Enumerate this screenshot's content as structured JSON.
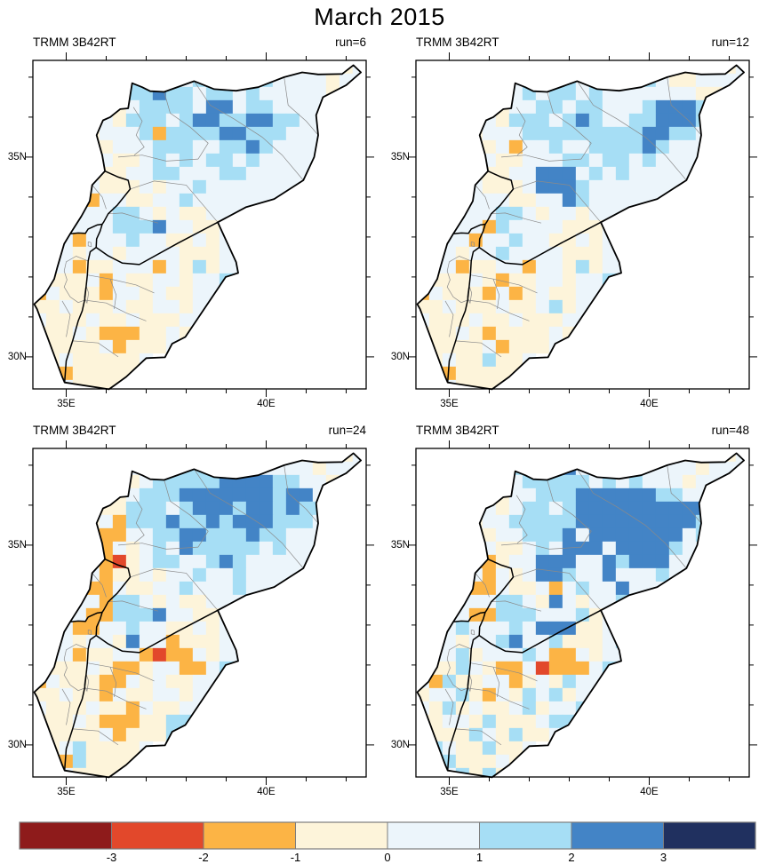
{
  "title": "March 2015",
  "chart_data": {
    "type": "heatmap",
    "title": "March 2015",
    "dataset_label": "TRMM 3B42RT",
    "description": "2x2 panel map figure of gridded precipitation anomaly categories over Syria, Lebanon, Israel and Jordan; color index 0-7 maps to bins < -3, -3..-2, -2..-1, -1..0, 0..1, 1..2, 2..3, > 3",
    "grid_origin": {
      "lon": 34.167,
      "lat": 37.42
    },
    "grid_cell_deg": 0.3333,
    "grid_cols": 25,
    "grid_rows": 25,
    "lon_range": [
      34.167,
      42.5
    ],
    "lat_range": [
      29.2,
      37.42
    ],
    "legend_position": "bottom",
    "axes": {
      "x_ticks": [
        {
          "lon": 35,
          "label": "35E",
          "major": true
        },
        {
          "lon": 36
        },
        {
          "lon": 37
        },
        {
          "lon": 38
        },
        {
          "lon": 39
        },
        {
          "lon": 40,
          "label": "40E",
          "major": true
        },
        {
          "lon": 41
        },
        {
          "lon": 42
        }
      ],
      "y_ticks": [
        {
          "lat": 30,
          "label": "30N",
          "major": true
        },
        {
          "lat": 31
        },
        {
          "lat": 32
        },
        {
          "lat": 33
        },
        {
          "lat": 34
        },
        {
          "lat": 35,
          "label": "35N",
          "major": true
        },
        {
          "lat": 36
        },
        {
          "lat": 37
        }
      ]
    },
    "colorbar": {
      "tick_labels": [
        "-3",
        "-2",
        "-1",
        "0",
        "1",
        "2",
        "3"
      ],
      "colors": [
        "#8e1b1b",
        "#e2482b",
        "#fcb445",
        "#fdf4da",
        "#ecf5fb",
        "#a6def5",
        "#4384c6",
        "#20305f"
      ]
    },
    "panels": [
      {
        "run": 6,
        "run_label": "run=6",
        "grid": [
          "......4454544544444434434",
          ".....44545645554454444344",
          "....44455655455454444434.",
          "....4434555546645544443..",
          "...44435554566556655444..",
          "...4344452555566555444...",
          "...3434445554455654444...",
          "...4243345454554544444...",
          "...433344554445544444....",
          "...44333434454444444.....",
          "...4244334454444444......",
          "...44455434334444........",
          ".444445556443344.........",
          ".442444544334344.........",
          ".443443444433344.........",
          ".442334442435344.........",
          "4333424334434455.........",
          "243332443433444..........",
          "33433343344344...........",
          "4333433433344............",
          "3334322233434............",
          "43333423334..............",
          "334333334................",
          "33233333.................",
          ".343333.................."
        ]
      },
      {
        "run": 12,
        "run_label": "run=12",
        "grid": [
          "......4444444544444333434",
          ".....44454454444454334444",
          "....44445455454444444334.",
          "....4434455455444566654..",
          "...44435554565445566655..",
          "...4344455555555566554...",
          "...3434244544555565444...",
          "...4343344455455454444...",
          "...433344666454544444....",
          "...44333466654444444.....",
          "...4444334465444444......",
          "...44455434434444........",
          ".444425444433344.........",
          ".444244544334344.........",
          ".443445444433344.........",
          ".442334424435344.........",
          "4333432334434455.........",
          "243332423433444..........",
          "33433343345344...........",
          "4333433433344............",
          "3334323333434............",
          "43333423334..............",
          "334335334................",
          "33233333.................",
          ".343333.................."
        ]
      },
      {
        "run": 24,
        "run_label": "run=24",
        "grid": [
          "......4444454544444334434",
          ".....43454455455544443444",
          "....33434555556666554434.",
          "....3334555666666656644..",
          "...43335554566656656554..",
          "...4342555655656665554...",
          "...3422445566555655444...",
          "...4224345465555545444...",
          "...432134554456544444....",
          "...44233434454454444.....",
          "...4224334454445444......",
          "...44255434334444........",
          ".444225556443344.........",
          ".442244544334344.........",
          ".443443644233344.........",
          ".442334421224344.........",
          "4333432234422455.........",
          "243332243433444..........",
          "33433243344344...........",
          "4333433243344............",
          "3334322233554............",
          "43333423335..............",
          "334533334................",
          "33253333.................",
          ".343333.................."
        ]
      },
      {
        "run": 48,
        "run_label": "run=48",
        "grid": [
          "......4454544544454334434",
          ".....44545564545444443444",
          "....44445555545454443444.",
          "....4434455566666655444..",
          "...444345545666666666644.",
          "...43445555566666666654..",
          "...34344555646666666454..",
          "...4343345466646666544...",
          "...422344666446566644....",
          "...44243466544644454.....",
          "...4224334245446444......",
          "...44455436434454........",
          ".444225554445345.........",
          ".445444546663344.........",
          ".443445644533345.........",
          ".445344454224344.........",
          "4335432241222455.........",
          "425334423435444..........",
          "34453243545344...........",
          "4353433453445............",
          "3344353334554............",
          "43335435334..............",
          "354335334................",
          "34533343.................",
          ".345353.................."
        ]
      }
    ]
  },
  "map_geometry": {
    "outline": [
      [
        35.92,
        35.92
      ],
      [
        35.76,
        35.55
      ],
      [
        35.9,
        35.05
      ],
      [
        35.97,
        34.65
      ],
      [
        35.65,
        34.3
      ],
      [
        35.59,
        33.9
      ],
      [
        35.38,
        33.52
      ],
      [
        35.1,
        33.08
      ],
      [
        34.95,
        32.83
      ],
      [
        34.78,
        32.25
      ],
      [
        34.7,
        31.95
      ],
      [
        34.48,
        31.58
      ],
      [
        34.2,
        31.32
      ],
      [
        34.27,
        31.2
      ],
      [
        34.9,
        29.5
      ],
      [
        34.96,
        29.36
      ],
      [
        36.07,
        29.19
      ],
      [
        36.5,
        29.5
      ],
      [
        37.0,
        29.97
      ],
      [
        37.47,
        29.99
      ],
      [
        37.65,
        30.33
      ],
      [
        37.98,
        30.5
      ],
      [
        38.99,
        32.0
      ],
      [
        39.3,
        32.1
      ],
      [
        39.25,
        32.37
      ],
      [
        38.79,
        33.37
      ],
      [
        39.5,
        33.75
      ],
      [
        40.2,
        33.95
      ],
      [
        40.93,
        34.42
      ],
      [
        41.2,
        35.0
      ],
      [
        41.3,
        35.55
      ],
      [
        41.25,
        36.05
      ],
      [
        41.42,
        36.5
      ],
      [
        42.0,
        36.8
      ],
      [
        42.37,
        37.12
      ],
      [
        42.18,
        37.3
      ],
      [
        41.9,
        37.08
      ],
      [
        41.3,
        37.07
      ],
      [
        40.9,
        37.12
      ],
      [
        40.45,
        37.0
      ],
      [
        39.8,
        36.75
      ],
      [
        39.25,
        36.66
      ],
      [
        38.7,
        36.7
      ],
      [
        38.2,
        36.9
      ],
      [
        37.45,
        36.63
      ],
      [
        37.1,
        36.65
      ],
      [
        36.9,
        36.75
      ],
      [
        36.65,
        36.85
      ],
      [
        36.55,
        36.22
      ],
      [
        36.35,
        36.2
      ],
      [
        36.1,
        36.0
      ],
      [
        35.92,
        35.92
      ]
    ],
    "internal_borders": [
      [
        [
          35.97,
          34.65
        ],
        [
          36.3,
          34.5
        ],
        [
          36.55,
          34.42
        ],
        [
          36.6,
          34.2
        ],
        [
          36.28,
          33.8
        ],
        [
          36.05,
          33.58
        ],
        [
          35.94,
          33.38
        ],
        [
          35.9,
          33.32
        ]
      ],
      [
        [
          35.1,
          33.08
        ],
        [
          35.3,
          33.1
        ],
        [
          35.48,
          33.09
        ],
        [
          35.55,
          33.2
        ],
        [
          35.77,
          33.3
        ],
        [
          35.9,
          33.32
        ]
      ],
      [
        [
          35.9,
          33.32
        ],
        [
          35.85,
          33.15
        ],
        [
          35.76,
          32.95
        ],
        [
          35.75,
          32.74
        ]
      ],
      [
        [
          35.75,
          32.74
        ],
        [
          36.05,
          32.53
        ],
        [
          36.4,
          32.35
        ],
        [
          36.83,
          32.31
        ],
        [
          37.8,
          32.85
        ],
        [
          38.79,
          33.37
        ]
      ],
      [
        [
          35.75,
          32.74
        ],
        [
          35.6,
          32.63
        ],
        [
          35.55,
          32.4
        ],
        [
          35.53,
          32.05
        ],
        [
          35.5,
          31.78
        ],
        [
          35.46,
          31.42
        ],
        [
          35.4,
          31.15
        ],
        [
          35.3,
          30.9
        ],
        [
          35.16,
          30.4
        ],
        [
          35.0,
          29.9
        ],
        [
          34.96,
          29.36
        ]
      ]
    ],
    "admin_lines": [
      [
        [
          35.55,
          32.4
        ],
        [
          35.25,
          32.52
        ],
        [
          35.0,
          32.38
        ],
        [
          34.95,
          32.15
        ],
        [
          35.02,
          31.93
        ],
        [
          34.95,
          31.75
        ],
        [
          35.1,
          31.5
        ],
        [
          35.3,
          31.36
        ],
        [
          35.46,
          31.42
        ]
      ],
      [
        [
          36.68,
          36.25
        ],
        [
          36.9,
          35.9
        ],
        [
          36.75,
          35.55
        ],
        [
          36.95,
          35.25
        ],
        [
          36.7,
          35.05
        ]
      ],
      [
        [
          37.45,
          36.63
        ],
        [
          37.6,
          36.1
        ],
        [
          38.1,
          35.75
        ],
        [
          38.55,
          35.35
        ],
        [
          38.3,
          34.95
        ]
      ],
      [
        [
          38.2,
          36.9
        ],
        [
          38.6,
          36.3
        ],
        [
          39.2,
          35.95
        ],
        [
          39.9,
          35.5
        ],
        [
          40.4,
          35.05
        ],
        [
          40.93,
          34.42
        ]
      ],
      [
        [
          40.45,
          37.0
        ],
        [
          40.55,
          36.3
        ],
        [
          41.0,
          35.9
        ],
        [
          41.3,
          35.55
        ]
      ],
      [
        [
          36.6,
          34.2
        ],
        [
          37.2,
          34.4
        ],
        [
          38.0,
          34.3
        ],
        [
          38.79,
          33.37
        ]
      ],
      [
        [
          36.3,
          35.0
        ],
        [
          36.9,
          35.05
        ],
        [
          37.5,
          34.9
        ],
        [
          38.3,
          34.95
        ]
      ],
      [
        [
          36.05,
          33.58
        ],
        [
          36.4,
          33.6
        ],
        [
          36.9,
          33.45
        ],
        [
          37.3,
          33.35
        ]
      ],
      [
        [
          35.65,
          34.3
        ],
        [
          35.9,
          34.0
        ],
        [
          36.0,
          33.7
        ]
      ],
      [
        [
          35.46,
          31.42
        ],
        [
          36.0,
          31.35
        ],
        [
          36.5,
          31.1
        ],
        [
          37.0,
          30.9
        ]
      ],
      [
        [
          35.16,
          30.4
        ],
        [
          35.8,
          30.35
        ],
        [
          36.3,
          30.0
        ]
      ],
      [
        [
          35.53,
          32.05
        ],
        [
          36.1,
          31.95
        ],
        [
          36.75,
          31.8
        ],
        [
          37.2,
          31.6
        ]
      ],
      [
        [
          34.9,
          31.4
        ],
        [
          35.1,
          31.05
        ],
        [
          35.0,
          30.5
        ]
      ],
      [
        [
          35.5,
          31.77
        ],
        [
          35.56,
          31.6
        ],
        [
          35.52,
          31.35
        ],
        [
          35.45,
          31.5
        ],
        [
          35.48,
          31.72
        ],
        [
          35.5,
          31.77
        ]
      ],
      [
        [
          35.55,
          32.88
        ],
        [
          35.62,
          32.86
        ],
        [
          35.63,
          32.76
        ],
        [
          35.55,
          32.78
        ],
        [
          35.55,
          32.88
        ]
      ],
      [
        [
          36.1,
          31.95
        ],
        [
          36.25,
          31.55
        ],
        [
          36.2,
          31.2
        ]
      ]
    ]
  }
}
